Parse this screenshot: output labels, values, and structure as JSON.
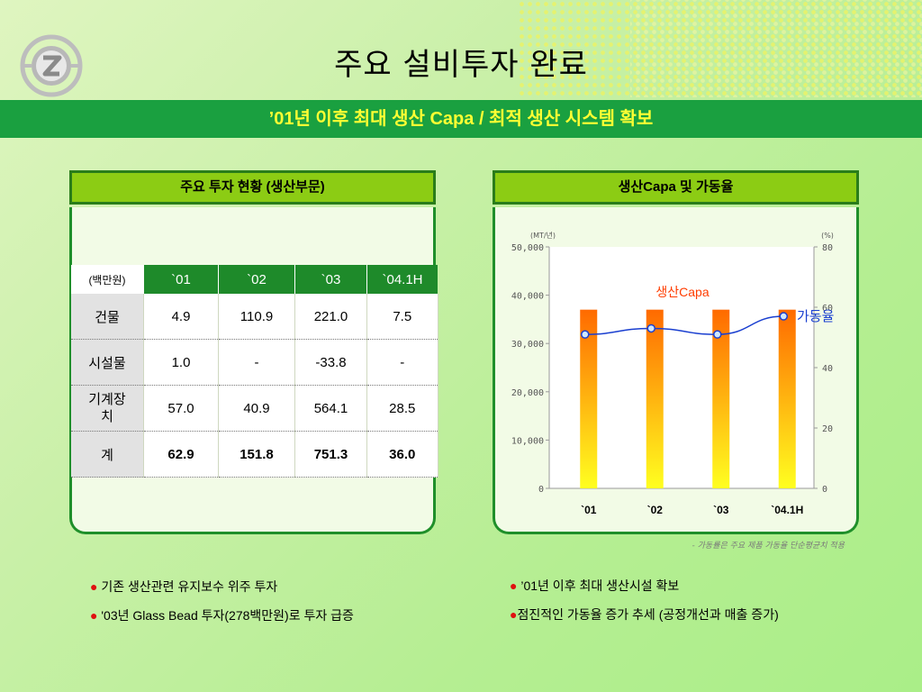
{
  "title": "주요 설비투자 완료",
  "subtitle": "’01년 이후 최대 생산 Capa / 최적 생산 시스템 확보",
  "left_panel": {
    "header": "주요 투자  현황 (생산부문)",
    "unit": "(백만원)",
    "columns": [
      "`01",
      "`02",
      "`03",
      "`04.1H"
    ],
    "rows": [
      {
        "label": "건물",
        "values": [
          "4.9",
          "110.9",
          "221.0",
          "7.5"
        ]
      },
      {
        "label": "시설물",
        "values": [
          "1.0",
          "-",
          "-33.8",
          "-"
        ]
      },
      {
        "label": "기계장치",
        "values": [
          "57.0",
          "40.9",
          "564.1",
          "28.5"
        ]
      },
      {
        "label": "계",
        "values": [
          "62.9",
          "151.8",
          "751.3",
          "36.0"
        ]
      }
    ]
  },
  "right_panel": {
    "header": "생산Capa 및 가동율"
  },
  "chart_data": {
    "type": "bar",
    "categories": [
      "`01",
      "`02",
      "`03",
      "`04.1H"
    ],
    "series": [
      {
        "name": "생산Capa",
        "type": "bar",
        "axis": "left",
        "values": [
          37000,
          37000,
          37000,
          37000
        ]
      },
      {
        "name": "가동율",
        "type": "line",
        "axis": "right",
        "values": [
          51,
          53,
          51,
          57
        ]
      }
    ],
    "ylabel": "(MT/년)",
    "y2label": "(%)",
    "ylim": [
      0,
      50000
    ],
    "y2lim": [
      0,
      80
    ],
    "yticks": [
      "0",
      "10,000",
      "20,000",
      "30,000",
      "40,000",
      "50,000"
    ],
    "y2ticks": [
      "0",
      "20",
      "40",
      "60",
      "80"
    ],
    "grid": false,
    "bar_color": "#ff7a00",
    "line_color": "#1a3fd0"
  },
  "note": "- 가동률은 주요 제품 가동율 단순평균치 적용",
  "bullets_left": [
    "기존 생산관련 유지보수 위주 투자",
    "'03년 Glass Bead 투자(278백만원)로 투자 급증"
  ],
  "bullets_right": [
    "’01년 이후 최대 생산시설 확보",
    "점진적인 가동율 증가 추세 (공정개선과 매출 증가)"
  ],
  "colors": {
    "banner": "#1aa040",
    "subtitle": "#ffff33",
    "panel_header": "#8ccc14",
    "table_header": "#1e8a2a"
  }
}
